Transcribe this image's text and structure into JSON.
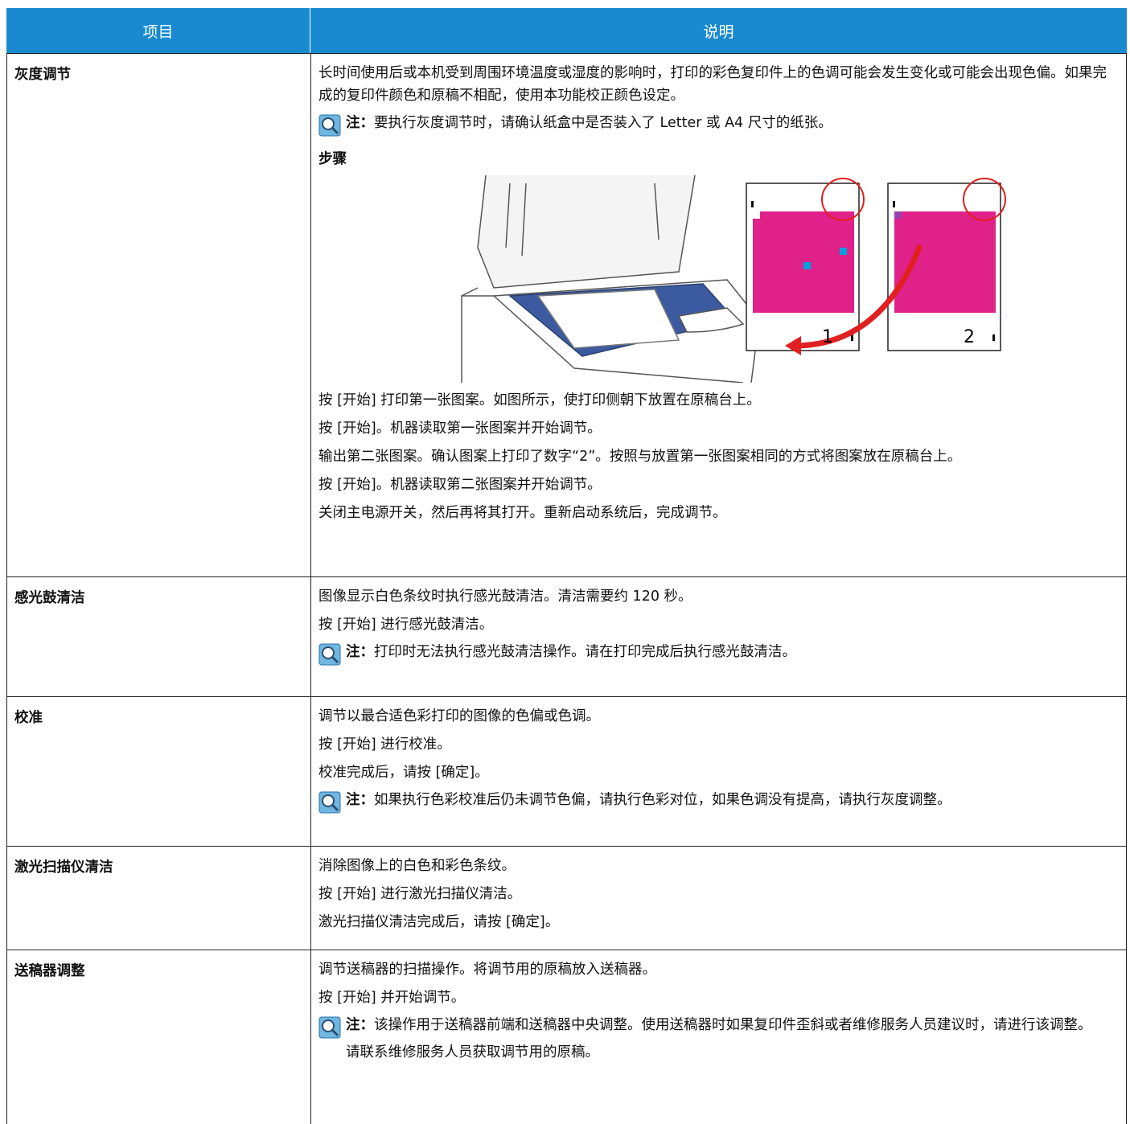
{
  "table": {
    "header": [
      "项目",
      "说明"
    ],
    "rows": [
      {
        "item": "灰度调节",
        "paragraphs": [
          "长时间使用后或本机受到周围环境温度或湿度的影响时，打印的彩色复印件上的色调可能会发生变化或可能会出现色偏。如果完成的复印件颜色和原稿不相配，使用本功能校正颜色设定。"
        ],
        "note": {
          "label": "注：",
          "text": "要执行灰度调节时，请确认纸盒中是否装入了 Letter 或 A4 尺寸的纸张。"
        },
        "steps_heading": "步骤",
        "figure_labels": [
          "1",
          "2"
        ],
        "steps": [
          "按 [开始] 打印第一张图案。如图所示，使打印侧朝下放置在原稿台上。",
          "按 [开始]。机器读取第一张图案并开始调节。",
          "输出第二张图案。确认图案上打印了数字“2”。按照与放置第一张图案相同的方式将图案放在原稿台上。",
          "按 [开始]。机器读取第二张图案并开始调节。",
          "关闭主电源开关，然后再将其打开。重新启动系统后，完成调节。"
        ]
      },
      {
        "item": "感光鼓清洁",
        "paragraphs": [
          "图像显示白色条纹时执行感光鼓清洁。清洁需要约 120 秒。",
          "按 [开始] 进行感光鼓清洁。"
        ],
        "note": {
          "label": "注：",
          "text": "打印时无法执行感光鼓清洁操作。请在打印完成后执行感光鼓清洁。"
        }
      },
      {
        "item": "校准",
        "paragraphs": [
          "调节以最合适色彩打印的图像的色偏或色调。",
          "按 [开始] 进行校准。",
          "校准完成后，请按 [确定]。"
        ],
        "note": {
          "label": "注：",
          "text": "如果执行色彩校准后仍未调节色偏，请执行色彩对位，如果色调没有提高，请执行灰度调整。"
        }
      },
      {
        "item": "激光扫描仪清洁",
        "paragraphs": [
          "消除图像上的白色和彩色条纹。",
          "按 [开始] 进行激光扫描仪清洁。",
          "激光扫描仪清洁完成后，请按 [确定]。"
        ]
      },
      {
        "item": "送稿器调整",
        "paragraphs": [
          "调节送稿器的扫描操作。将调节用的原稿放入送稿器。",
          "按 [开始] 并开始调节。"
        ],
        "note": {
          "label": "注：",
          "text": "该操作用于送稿器前端和送稿器中央调整。使用送稿器时如果复印件歪斜或者维修服务人员建议时，请进行该调整。",
          "extra": "请联系维修服务人员获取调节用的原稿。"
        }
      }
    ]
  }
}
